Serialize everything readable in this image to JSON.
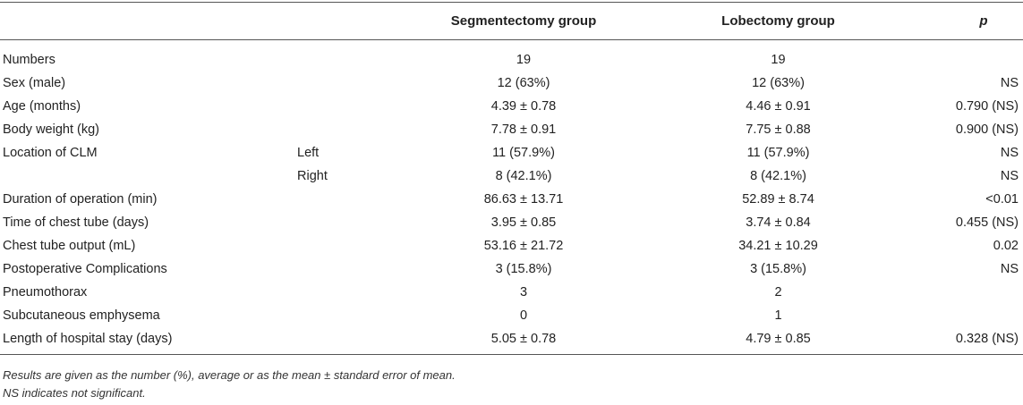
{
  "header": {
    "col_seg": "Segmentectomy group",
    "col_lob": "Lobectomy group",
    "col_p": "p"
  },
  "rows": [
    {
      "label": "Numbers",
      "sub": "",
      "seg": "19",
      "lob": "19",
      "p": ""
    },
    {
      "label": "Sex (male)",
      "sub": "",
      "seg": "12 (63%)",
      "lob": "12 (63%)",
      "p": "NS"
    },
    {
      "label": "Age (months)",
      "sub": "",
      "seg": "4.39 ± 0.78",
      "lob": "4.46 ± 0.91",
      "p": "0.790 (NS)"
    },
    {
      "label": "Body weight (kg)",
      "sub": "",
      "seg": "7.78 ± 0.91",
      "lob": "7.75 ± 0.88",
      "p": "0.900 (NS)"
    },
    {
      "label": "Location of CLM",
      "sub": "Left",
      "seg": "11 (57.9%)",
      "lob": "11 (57.9%)",
      "p": "NS"
    },
    {
      "label": "",
      "sub": "Right",
      "seg": "8 (42.1%)",
      "lob": "8 (42.1%)",
      "p": "NS"
    },
    {
      "label": "Duration of operation (min)",
      "sub": "",
      "seg": "86.63 ± 13.71",
      "lob": "52.89 ± 8.74",
      "p": "<0.01"
    },
    {
      "label": "Time of chest tube (days)",
      "sub": "",
      "seg": "3.95 ± 0.85",
      "lob": "3.74 ± 0.84",
      "p": "0.455 (NS)"
    },
    {
      "label": "Chest tube output (mL)",
      "sub": "",
      "seg": "53.16 ± 21.72",
      "lob": "34.21 ± 10.29",
      "p": "0.02"
    },
    {
      "label": "Postoperative Complications",
      "sub": "",
      "seg": "3 (15.8%)",
      "lob": "3 (15.8%)",
      "p": "NS"
    },
    {
      "label": "Pneumothorax",
      "sub": "",
      "seg": "3",
      "lob": "2",
      "p": ""
    },
    {
      "label": "Subcutaneous emphysema",
      "sub": "",
      "seg": "0",
      "lob": "1",
      "p": ""
    },
    {
      "label": "Length of hospital stay (days)",
      "sub": "",
      "seg": "5.05 ± 0.78",
      "lob": "4.79 ± 0.85",
      "p": "0.328 (NS)"
    }
  ],
  "footnotes": {
    "note1": "Results are given as the number (%), average or as the mean ± standard error of mean.",
    "note2": "NS indicates not significant."
  }
}
